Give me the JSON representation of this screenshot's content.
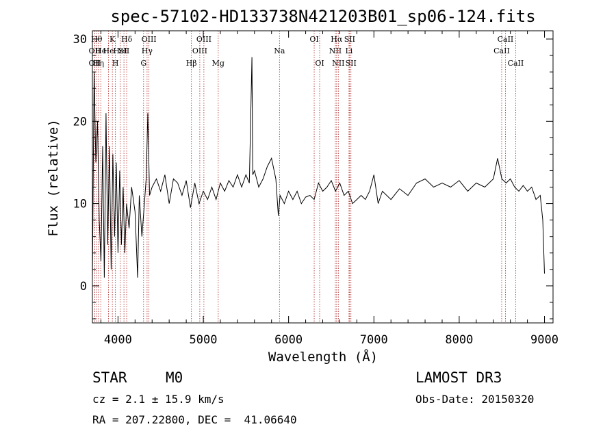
{
  "chart_data": {
    "type": "line",
    "title": "spec-57102-HD133738N421203B01_sp06-124.fits",
    "xlabel": "Wavelength (Å)",
    "ylabel": "Flux (relative)",
    "xlim": [
      3700,
      9100
    ],
    "ylim": [
      -4.5,
      31
    ],
    "xticks": [
      4000,
      5000,
      6000,
      7000,
      8000,
      9000
    ],
    "yticks": [
      0,
      10,
      20,
      30
    ],
    "grid": false,
    "series": [
      {
        "x": [
          3700,
          3720,
          3740,
          3760,
          3780,
          3800,
          3820,
          3840,
          3860,
          3880,
          3900,
          3920,
          3940,
          3960,
          3980,
          4000,
          4020,
          4040,
          4060,
          4080,
          4100,
          4130,
          4160,
          4200,
          4230,
          4250,
          4280,
          4310,
          4330,
          4350,
          4370,
          4400,
          4450,
          4500,
          4550,
          4600,
          4650,
          4700,
          4750,
          4800,
          4850,
          4900,
          4950,
          5000,
          5050,
          5100,
          5150,
          5200,
          5250,
          5300,
          5350,
          5400,
          5450,
          5500,
          5540,
          5570,
          5580,
          5600,
          5650,
          5700,
          5750,
          5800,
          5850,
          5880,
          5900,
          5950,
          6000,
          6050,
          6100,
          6150,
          6200,
          6250,
          6300,
          6350,
          6400,
          6450,
          6500,
          6550,
          6600,
          6650,
          6700,
          6750,
          6800,
          6850,
          6900,
          6950,
          7000,
          7050,
          7100,
          7200,
          7300,
          7400,
          7500,
          7600,
          7700,
          7800,
          7900,
          8000,
          8100,
          8200,
          8300,
          8400,
          8450,
          8500,
          8550,
          8600,
          8650,
          8700,
          8750,
          8800,
          8850,
          8900,
          8950,
          8980,
          9000
        ],
        "y": [
          1.0,
          26.0,
          15.0,
          20.0,
          8.0,
          3.0,
          17.0,
          1.0,
          21.0,
          5.0,
          17.0,
          2.0,
          16.0,
          6.0,
          15.0,
          4.0,
          14.0,
          5.0,
          12.0,
          4.0,
          10.0,
          7.0,
          12.0,
          9.0,
          1.0,
          11.0,
          6.0,
          10.0,
          13.0,
          21.0,
          11.0,
          12.0,
          13.0,
          11.5,
          13.5,
          10.0,
          13.0,
          12.5,
          11.0,
          12.8,
          9.5,
          12.5,
          10.0,
          11.5,
          10.5,
          12.0,
          10.5,
          12.5,
          11.5,
          12.8,
          12.0,
          13.5,
          12.0,
          13.5,
          12.5,
          27.8,
          13.5,
          14.0,
          12.0,
          13.0,
          14.5,
          15.5,
          13.0,
          8.5,
          11.0,
          10.0,
          11.5,
          10.5,
          11.5,
          10.0,
          10.8,
          11.0,
          10.5,
          12.5,
          11.5,
          12.0,
          12.8,
          11.5,
          12.5,
          11.0,
          11.5,
          10.0,
          10.5,
          11.0,
          10.5,
          11.5,
          13.5,
          10.0,
          11.5,
          10.5,
          11.8,
          11.0,
          12.5,
          13.0,
          12.0,
          12.5,
          12.0,
          12.8,
          11.5,
          12.5,
          12.0,
          13.0,
          15.5,
          13.0,
          12.5,
          13.0,
          12.0,
          11.5,
          12.2,
          11.5,
          12.0,
          10.5,
          11.0,
          8.0,
          1.5
        ]
      }
    ],
    "lines": [
      {
        "x": 3727,
        "label": "OII",
        "row": 2
      },
      {
        "x": 3727,
        "label": "OII",
        "row": 3
      },
      {
        "x": 3750,
        "label": "Hθ",
        "row": 1
      },
      {
        "x": 3771,
        "label": "Hη",
        "row": 3
      },
      {
        "x": 3798,
        "label": "He",
        "row": 2
      },
      {
        "x": 3889,
        "label": "He",
        "row": 2
      },
      {
        "x": 3934,
        "label": "K",
        "row": 1
      },
      {
        "x": 3970,
        "label": "H",
        "row": 3
      },
      {
        "x": 4026,
        "label": "HeI",
        "row": 2
      },
      {
        "x": 4070,
        "label": "SII",
        "row": 2
      },
      {
        "x": 4102,
        "label": "Hδ",
        "row": 1
      },
      {
        "x": 4300,
        "label": "G",
        "row": 3
      },
      {
        "x": 4341,
        "label": "Hγ",
        "row": 2
      },
      {
        "x": 4363,
        "label": "OIII",
        "row": 1
      },
      {
        "x": 4861,
        "label": "Hβ",
        "row": 3
      },
      {
        "x": 4959,
        "label": "OIII",
        "row": 2
      },
      {
        "x": 5007,
        "label": "OIII",
        "row": 1
      },
      {
        "x": 5175,
        "label": "Mg",
        "row": 3
      },
      {
        "x": 5893,
        "label": "Na",
        "row": 2
      },
      {
        "x": 6300,
        "label": "OI",
        "row": 1
      },
      {
        "x": 6364,
        "label": "OI",
        "row": 3
      },
      {
        "x": 6548,
        "label": "NII",
        "row": 2
      },
      {
        "x": 6563,
        "label": "Hα",
        "row": 1
      },
      {
        "x": 6583,
        "label": "NII",
        "row": 3
      },
      {
        "x": 6708,
        "label": "Li",
        "row": 2
      },
      {
        "x": 6716,
        "label": "SII",
        "row": 1
      },
      {
        "x": 6731,
        "label": "SII",
        "row": 3
      },
      {
        "x": 8498,
        "label": "CaII",
        "row": 2
      },
      {
        "x": 8542,
        "label": "CaII",
        "row": 1
      },
      {
        "x": 8662,
        "label": "CaII",
        "row": 3
      }
    ]
  },
  "info": {
    "class": "STAR",
    "subclass": "M0",
    "survey": "LAMOST DR3",
    "cz": "cz = 2.1 ± 15.9 km/s",
    "obs_date": "Obs-Date: 20150320",
    "coords": "RA = 207.22800, DEC =  41.06640"
  },
  "colors": {
    "spectrum": "#000000",
    "line_marker": "#b22222"
  }
}
